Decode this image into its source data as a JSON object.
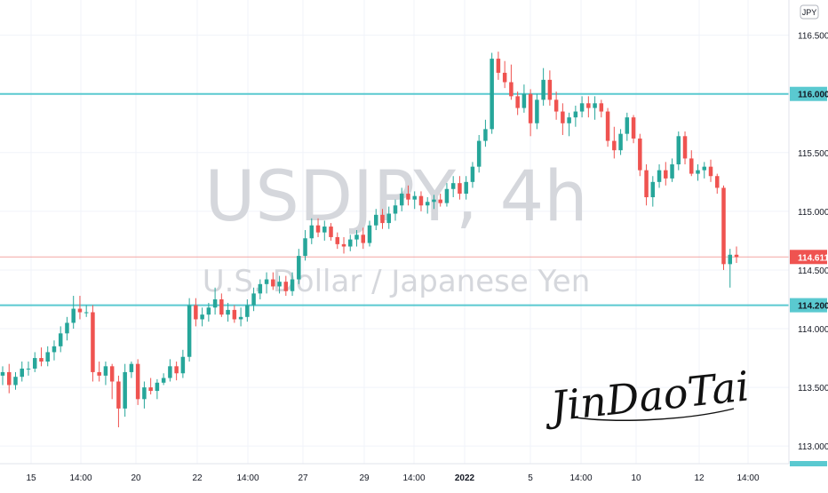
{
  "chart_data": {
    "type": "candlestick",
    "symbol": "USDJPY, 4h",
    "description": "U.S. Dollar / Japanese Yen",
    "currency": "JPY",
    "signature": "JinDaoTai",
    "y_ticks": [
      "116.500",
      "116.000",
      "115.500",
      "115.000",
      "114.500",
      "114.000",
      "113.500",
      "113.000"
    ],
    "y_range": [
      112.85,
      116.8
    ],
    "x_ticks": [
      "15",
      "14:00",
      "20",
      "22",
      "14:00",
      "27",
      "29",
      "14:00",
      "2022",
      "5",
      "14:00",
      "10",
      "12",
      "14:00"
    ],
    "x_tick_bold": "2022",
    "current_price": "114.611",
    "current_price_value": 114.611,
    "levels": [
      {
        "label": "116.000",
        "value": 116.0
      },
      {
        "label": "114.200",
        "value": 114.2
      }
    ],
    "colors": {
      "up": "#26a69a",
      "down": "#ef5350",
      "level": "#5ac9d0",
      "price": "#ef5350",
      "watermark": "#d5d7dc"
    },
    "candles": [
      [
        113.6,
        113.68,
        113.52,
        113.63
      ],
      [
        113.63,
        113.7,
        113.45,
        113.52
      ],
      [
        113.52,
        113.63,
        113.48,
        113.59
      ],
      [
        113.59,
        113.72,
        113.55,
        113.66
      ],
      [
        113.66,
        113.72,
        113.6,
        113.66
      ],
      [
        113.66,
        113.8,
        113.63,
        113.75
      ],
      [
        113.75,
        113.84,
        113.68,
        113.72
      ],
      [
        113.72,
        113.85,
        113.68,
        113.8
      ],
      [
        113.8,
        113.9,
        113.73,
        113.85
      ],
      [
        113.85,
        114.02,
        113.8,
        113.96
      ],
      [
        113.96,
        114.1,
        113.9,
        114.05
      ],
      [
        114.05,
        114.28,
        114.0,
        114.17
      ],
      [
        114.17,
        114.28,
        114.08,
        114.14
      ],
      [
        114.14,
        114.2,
        114.1,
        114.14
      ],
      [
        114.14,
        114.2,
        113.55,
        113.63
      ],
      [
        113.63,
        113.72,
        113.55,
        113.6
      ],
      [
        113.6,
        113.72,
        113.52,
        113.68
      ],
      [
        113.68,
        113.7,
        113.4,
        113.55
      ],
      [
        113.55,
        113.6,
        113.16,
        113.32
      ],
      [
        113.32,
        113.7,
        113.25,
        113.63
      ],
      [
        113.63,
        113.72,
        113.58,
        113.7
      ],
      [
        113.7,
        113.74,
        113.35,
        113.4
      ],
      [
        113.4,
        113.55,
        113.32,
        113.5
      ],
      [
        113.5,
        113.58,
        113.44,
        113.47
      ],
      [
        113.47,
        113.57,
        113.4,
        113.54
      ],
      [
        113.54,
        113.62,
        113.52,
        113.58
      ],
      [
        113.58,
        113.74,
        113.55,
        113.68
      ],
      [
        113.68,
        113.72,
        113.56,
        113.62
      ],
      [
        113.62,
        113.82,
        113.58,
        113.76
      ],
      [
        113.76,
        114.26,
        113.72,
        114.2
      ],
      [
        114.2,
        114.26,
        114.02,
        114.08
      ],
      [
        114.08,
        114.18,
        114.02,
        114.12
      ],
      [
        114.12,
        114.22,
        114.06,
        114.18
      ],
      [
        114.18,
        114.35,
        114.12,
        114.25
      ],
      [
        114.25,
        114.3,
        114.1,
        114.12
      ],
      [
        114.12,
        114.22,
        114.06,
        114.16
      ],
      [
        114.16,
        114.2,
        114.05,
        114.08
      ],
      [
        114.08,
        114.18,
        114.02,
        114.1
      ],
      [
        114.1,
        114.25,
        114.06,
        114.2
      ],
      [
        114.2,
        114.35,
        114.15,
        114.3
      ],
      [
        114.3,
        114.42,
        114.25,
        114.38
      ],
      [
        114.38,
        114.48,
        114.3,
        114.42
      ],
      [
        114.42,
        114.48,
        114.33,
        114.36
      ],
      [
        114.36,
        114.45,
        114.3,
        114.4
      ],
      [
        114.4,
        114.45,
        114.28,
        114.32
      ],
      [
        114.32,
        114.48,
        114.28,
        114.42
      ],
      [
        114.42,
        114.68,
        114.38,
        114.62
      ],
      [
        114.62,
        114.84,
        114.58,
        114.77
      ],
      [
        114.77,
        114.94,
        114.72,
        114.88
      ],
      [
        114.88,
        114.94,
        114.78,
        114.82
      ],
      [
        114.82,
        114.92,
        114.75,
        114.87
      ],
      [
        114.87,
        114.9,
        114.75,
        114.78
      ],
      [
        114.78,
        114.82,
        114.68,
        114.72
      ],
      [
        114.72,
        114.78,
        114.64,
        114.7
      ],
      [
        114.7,
        114.8,
        114.66,
        114.76
      ],
      [
        114.76,
        114.84,
        114.7,
        114.8
      ],
      [
        114.8,
        114.86,
        114.68,
        114.73
      ],
      [
        114.73,
        114.92,
        114.7,
        114.88
      ],
      [
        114.88,
        115.02,
        114.84,
        114.97
      ],
      [
        114.97,
        115.02,
        114.85,
        114.9
      ],
      [
        114.9,
        115.04,
        114.85,
        114.98
      ],
      [
        114.98,
        115.1,
        114.92,
        115.05
      ],
      [
        115.05,
        115.2,
        115.0,
        115.15
      ],
      [
        115.15,
        115.22,
        115.05,
        115.1
      ],
      [
        115.1,
        115.17,
        115.02,
        115.13
      ],
      [
        115.13,
        115.17,
        115.0,
        115.05
      ],
      [
        115.05,
        115.12,
        114.98,
        115.08
      ],
      [
        115.08,
        115.14,
        115.02,
        115.1
      ],
      [
        115.1,
        115.15,
        115.04,
        115.07
      ],
      [
        115.07,
        115.24,
        115.04,
        115.19
      ],
      [
        115.19,
        115.3,
        115.12,
        115.24
      ],
      [
        115.24,
        115.3,
        115.1,
        115.15
      ],
      [
        115.15,
        115.3,
        115.1,
        115.25
      ],
      [
        115.25,
        115.42,
        115.2,
        115.38
      ],
      [
        115.38,
        115.65,
        115.33,
        115.6
      ],
      [
        115.6,
        115.78,
        115.55,
        115.7
      ],
      [
        115.7,
        116.35,
        115.66,
        116.3
      ],
      [
        116.3,
        116.36,
        116.12,
        116.18
      ],
      [
        116.18,
        116.28,
        116.05,
        116.1
      ],
      [
        116.1,
        116.25,
        115.95,
        115.98
      ],
      [
        115.98,
        116.02,
        115.82,
        115.88
      ],
      [
        115.88,
        116.08,
        115.84,
        116.0
      ],
      [
        116.0,
        116.04,
        115.64,
        115.75
      ],
      [
        115.75,
        116.0,
        115.7,
        115.95
      ],
      [
        115.95,
        116.22,
        115.9,
        116.12
      ],
      [
        116.12,
        116.2,
        115.9,
        115.95
      ],
      [
        115.95,
        116.02,
        115.78,
        115.85
      ],
      [
        115.85,
        115.92,
        115.65,
        115.75
      ],
      [
        115.75,
        115.84,
        115.64,
        115.8
      ],
      [
        115.8,
        115.9,
        115.72,
        115.85
      ],
      [
        115.85,
        115.98,
        115.8,
        115.92
      ],
      [
        115.92,
        115.98,
        115.8,
        115.88
      ],
      [
        115.88,
        115.98,
        115.78,
        115.92
      ],
      [
        115.92,
        115.95,
        115.8,
        115.85
      ],
      [
        115.85,
        115.88,
        115.55,
        115.6
      ],
      [
        115.6,
        115.72,
        115.45,
        115.52
      ],
      [
        115.52,
        115.7,
        115.48,
        115.66
      ],
      [
        115.66,
        115.84,
        115.6,
        115.8
      ],
      [
        115.8,
        115.82,
        115.58,
        115.62
      ],
      [
        115.62,
        115.66,
        115.3,
        115.35
      ],
      [
        115.35,
        115.4,
        115.05,
        115.12
      ],
      [
        115.12,
        115.3,
        115.04,
        115.25
      ],
      [
        115.25,
        115.4,
        115.2,
        115.35
      ],
      [
        115.35,
        115.42,
        115.22,
        115.28
      ],
      [
        115.28,
        115.45,
        115.25,
        115.4
      ],
      [
        115.4,
        115.68,
        115.35,
        115.64
      ],
      [
        115.64,
        115.68,
        115.4,
        115.45
      ],
      [
        115.45,
        115.52,
        115.3,
        115.32
      ],
      [
        115.32,
        115.4,
        115.26,
        115.35
      ],
      [
        115.35,
        115.42,
        115.28,
        115.38
      ],
      [
        115.38,
        115.44,
        115.25,
        115.3
      ],
      [
        115.3,
        115.32,
        115.15,
        115.2
      ],
      [
        115.2,
        115.22,
        114.5,
        114.55
      ],
      [
        114.55,
        114.68,
        114.35,
        114.63
      ],
      [
        114.63,
        114.7,
        114.56,
        114.611
      ]
    ]
  }
}
